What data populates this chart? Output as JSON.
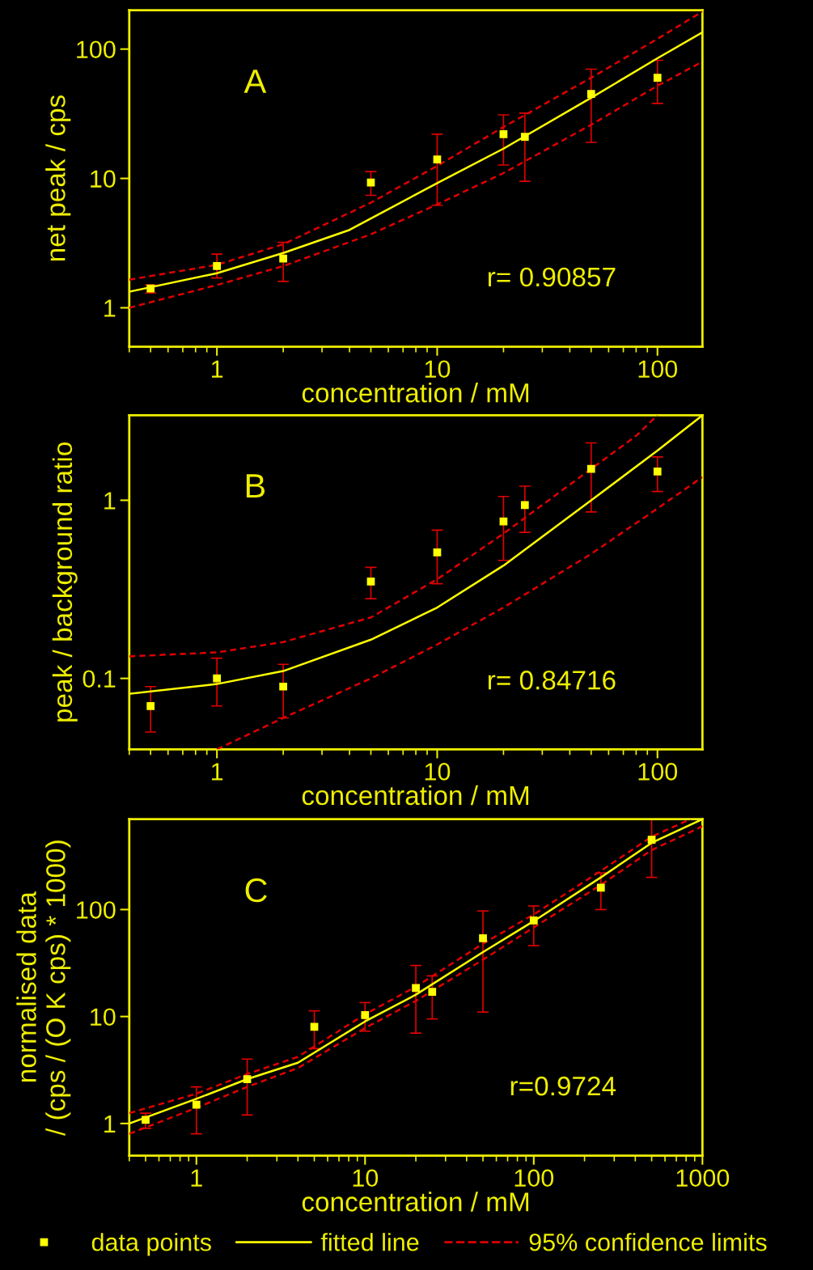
{
  "chart_data": [
    {
      "type": "scatter",
      "xlabel": "concentration / mM",
      "ylabel": "net peak / cps",
      "log": "xy",
      "xlim": [
        0.4,
        160
      ],
      "ylim": [
        0.5,
        200
      ],
      "xticks": [
        1,
        10,
        100
      ],
      "yticks": [
        1,
        10,
        100
      ],
      "grid": false,
      "legend": false,
      "annotations": [
        "A",
        "r= 0.90857"
      ],
      "series": [
        {
          "marker": "square",
          "color": "#ffff00",
          "x": [
            0.5,
            1,
            2,
            5,
            10,
            20,
            25,
            50,
            100
          ],
          "values": [
            1.41,
            2.1,
            2.4,
            9.3,
            14,
            22,
            21,
            45,
            60
          ],
          "errors": [
            [
              1.3,
              1.5
            ],
            [
              1.7,
              2.6
            ],
            [
              1.6,
              3.2
            ],
            [
              7.4,
              11.3
            ],
            [
              6.2,
              22
            ],
            [
              12.7,
              31
            ],
            [
              9.5,
              32
            ],
            [
              19,
              70
            ],
            [
              38,
              82
            ]
          ]
        },
        {
          "type": "line",
          "line_style": "solid",
          "color": "#ffff00",
          "x": [
            0.4,
            1,
            2,
            4,
            10,
            20,
            50,
            100,
            160
          ],
          "values": [
            1.33,
            1.85,
            2.65,
            4.0,
            9.2,
            17,
            42,
            85,
            135
          ]
        },
        {
          "type": "line",
          "line_style": "dashed",
          "color": "#e00000",
          "x": [
            0.4,
            1,
            2,
            5,
            10,
            20,
            50,
            100,
            160
          ],
          "values": [
            1.65,
            2.15,
            3.1,
            6.5,
            12.5,
            25,
            60,
            120,
            195
          ]
        },
        {
          "type": "line",
          "line_style": "dashed",
          "color": "#e00000",
          "x": [
            0.4,
            1,
            2,
            5,
            10,
            20,
            50,
            100,
            160
          ],
          "values": [
            1.0,
            1.5,
            2.1,
            3.7,
            6.3,
            11,
            26,
            52,
            80
          ]
        }
      ]
    },
    {
      "type": "scatter",
      "xlabel": "concentration / mM",
      "ylabel": "peak / background ratio",
      "log": "xy",
      "xlim": [
        0.4,
        160
      ],
      "ylim": [
        0.04,
        3
      ],
      "xticks": [
        1,
        10,
        100
      ],
      "yticks": [
        0.1,
        1
      ],
      "grid": false,
      "legend": false,
      "annotations": [
        "B",
        "r= 0.84716"
      ],
      "series": [
        {
          "marker": "square",
          "color": "#ffff00",
          "x": [
            0.5,
            1,
            2,
            5,
            10,
            20,
            25,
            50,
            100
          ],
          "values": [
            0.07,
            0.1,
            0.09,
            0.35,
            0.51,
            0.76,
            0.94,
            1.5,
            1.45
          ],
          "errors": [
            [
              0.05,
              0.09
            ],
            [
              0.07,
              0.13
            ],
            [
              0.06,
              0.12
            ],
            [
              0.28,
              0.42
            ],
            [
              0.34,
              0.68
            ],
            [
              0.46,
              1.05
            ],
            [
              0.66,
              1.2
            ],
            [
              0.86,
              2.1
            ],
            [
              1.12,
              1.75
            ]
          ]
        },
        {
          "type": "line",
          "line_style": "solid",
          "color": "#ffff00",
          "x": [
            0.4,
            1,
            2,
            5,
            10,
            20,
            50,
            100,
            160
          ],
          "values": [
            0.082,
            0.093,
            0.11,
            0.165,
            0.25,
            0.43,
            1.0,
            1.9,
            3.0
          ]
        },
        {
          "type": "line",
          "line_style": "dashed",
          "color": "#e00000",
          "x": [
            0.4,
            1,
            2,
            5,
            10,
            20,
            50,
            80,
            100
          ],
          "values": [
            0.133,
            0.14,
            0.16,
            0.22,
            0.36,
            0.65,
            1.5,
            2.3,
            3.0
          ]
        },
        {
          "type": "line",
          "line_style": "dashed",
          "color": "#e00000",
          "x": [
            1,
            2,
            5,
            10,
            20,
            50,
            100,
            160
          ],
          "values": [
            0.04,
            0.06,
            0.1,
            0.155,
            0.25,
            0.5,
            0.9,
            1.35
          ]
        }
      ]
    },
    {
      "type": "scatter",
      "xlabel": "concentration / mM",
      "ylabel": "normalised data\n/ (cps / (O K cps) * 1000)",
      "log": "xy",
      "xlim": [
        0.4,
        1000
      ],
      "ylim": [
        0.5,
        700
      ],
      "xticks": [
        1,
        10,
        100,
        1000
      ],
      "yticks": [
        1,
        10,
        100
      ],
      "grid": false,
      "legend": "bottom",
      "annotations": [
        "C",
        "r=0.9724"
      ],
      "series": [
        {
          "name": "data points",
          "marker": "square",
          "color": "#ffff00",
          "x": [
            0.5,
            1,
            2,
            5,
            10,
            20,
            25,
            50,
            100,
            250,
            500
          ],
          "values": [
            1.08,
            1.5,
            2.6,
            8,
            10.3,
            18.5,
            17,
            54,
            79,
            160,
            450
          ],
          "errors": [
            [
              0.9,
              1.25
            ],
            [
              0.8,
              2.2
            ],
            [
              1.2,
              4.0
            ],
            [
              5.0,
              11.3
            ],
            [
              7.3,
              13.5
            ],
            [
              7,
              30
            ],
            [
              9.5,
              24
            ],
            [
              11,
              97
            ],
            [
              46,
              108
            ],
            [
              100,
              220
            ],
            [
              200,
              700
            ]
          ]
        },
        {
          "name": "fitted line",
          "type": "line",
          "line_style": "solid",
          "color": "#ffff00",
          "x": [
            0.4,
            1,
            2,
            4,
            10,
            20,
            50,
            100,
            250,
            500,
            1000
          ],
          "values": [
            1.0,
            1.7,
            2.6,
            3.7,
            9.0,
            16,
            40,
            78,
            200,
            420,
            700
          ]
        },
        {
          "name": "95% confidence limits",
          "type": "line",
          "line_style": "dashed",
          "color": "#e00000",
          "x": [
            0.4,
            1,
            2,
            4,
            10,
            20,
            50,
            100,
            250,
            500,
            850
          ],
          "values": [
            1.25,
            1.9,
            2.9,
            4.2,
            10.5,
            19,
            48,
            90,
            230,
            480,
            700
          ]
        },
        {
          "type": "line",
          "line_style": "dashed",
          "color": "#e00000",
          "x": [
            0.4,
            1,
            2,
            4,
            10,
            20,
            50,
            100,
            250,
            500,
            1000
          ],
          "values": [
            0.8,
            1.4,
            2.2,
            3.3,
            7.8,
            14,
            34,
            68,
            170,
            360,
            600
          ]
        }
      ]
    }
  ]
}
